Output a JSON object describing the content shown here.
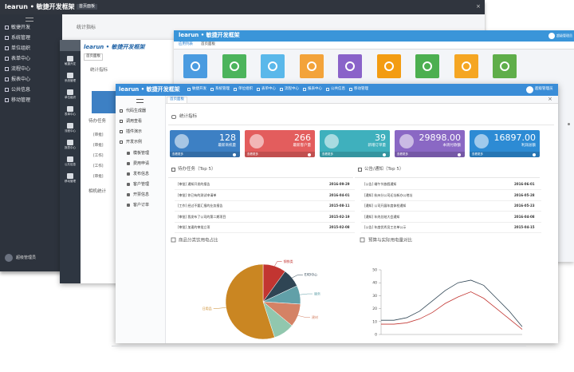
{
  "back_window": {
    "brand": "learun • 敏捷开发框架",
    "tab": "首页面板",
    "menu": [
      "敏捷开发",
      "系统管理",
      "单位组织",
      "表单中心",
      "流程中心",
      "报表中心",
      "公共信息",
      "移动管理"
    ],
    "section": "统计指标",
    "user": "超级管理员"
  },
  "mid_window": {
    "brand": "learun • 敏捷开发框架",
    "tab": "首页面板",
    "menu": [
      "敏捷开发",
      "系统管理",
      "单位组织",
      "表单中心",
      "流程中心",
      "报表中心",
      "公共信息",
      "移动管理"
    ],
    "section": "统计指标",
    "tasks_title": "待办任务",
    "tasks": [
      "[审批]",
      "[审批]",
      "[工作]",
      "[工作]",
      "[审批]"
    ],
    "section3": "相机统计"
  },
  "blue_window": {
    "brand": "learun • 敏捷开发框架",
    "tabs": [
      "应用列表",
      "首页面板"
    ],
    "user": "超级管理员",
    "tile_colors": [
      "#4a9be0",
      "#4cb45c",
      "#5ab8ea",
      "#f3a33a",
      "#8a63c9",
      "#f39c12",
      "#4caf50",
      "#f5a623",
      "#5fae4a"
    ]
  },
  "front_window": {
    "brand": "learun • 敏捷开发框架",
    "menu": [
      "敏捷开发",
      "系统管理",
      "单位组织",
      "表单中心",
      "流程中心",
      "报表中心",
      "公共信息",
      "移动管理"
    ],
    "user": "超级管理员",
    "tab": "首页面板",
    "side": [
      "代码生成器",
      "调用查看",
      "插件演示",
      "开发示例"
    ],
    "sub": [
      "模板管理",
      "费用申请",
      "发布信息",
      "客户管理",
      "开票信息",
      "客户订单"
    ],
    "section": "统计指标",
    "cards": [
      {
        "value": "128",
        "label": "最新商机量",
        "more": "查看更多",
        "color": "#3d80c4"
      },
      {
        "value": "266",
        "label": "最新客户量",
        "more": "查看更多",
        "color": "#e35d5d"
      },
      {
        "value": "39",
        "label": "新增订单量",
        "more": "查看更多",
        "color": "#3fb0bd"
      },
      {
        "value": "29898.00",
        "label": "本周付款额",
        "more": "查看更多",
        "color": "#8a68c4"
      },
      {
        "value": "16897.00",
        "label": "利润总额",
        "more": "查看更多",
        "color": "#2d8bd4"
      }
    ],
    "tasks": {
      "title": "待办任务（Top 5）",
      "rows": [
        {
          "text": "[审批] 通知开发的报告",
          "date": "2016-09-29"
        },
        {
          "text": "[审批] 你已有的测试申请单",
          "date": "2016-04-01"
        },
        {
          "text": "[工作] 经过不要汇报的业务报告",
          "date": "2015-08-11"
        },
        {
          "text": "[审批] 我发布了公司的第二期项目",
          "date": "2015-02-19"
        },
        {
          "text": "[审批] 加速的审批立项",
          "date": "2015-02-08"
        }
      ]
    },
    "notices": {
      "title": "公告/通知（Top 5）",
      "rows": [
        {
          "text": "[公告] 端午节放假通知",
          "date": "2016-06-01"
        },
        {
          "text": "[通知] 杭州分公司迁址新办公地址",
          "date": "2016-05-28"
        },
        {
          "text": "[通知] 公司开展年度体检通知",
          "date": "2016-05-23"
        },
        {
          "text": "[通知] 年终总结大会通知",
          "date": "2016-04-08"
        },
        {
          "text": "[公告] 年度优秀员工名单公示",
          "date": "2015-04-15"
        }
      ]
    }
  },
  "chart_data": [
    {
      "type": "pie",
      "title": "商品分类饮用电占比",
      "categories": [
        "钢铁类",
        "EXO中心",
        "服务",
        "建材",
        null,
        "日用品"
      ],
      "values": [
        10,
        8,
        8,
        10,
        9,
        55
      ],
      "colors": [
        "#c23531",
        "#2f4554",
        "#61a0a8",
        "#d48265",
        "#91c7ae",
        "#ca8622"
      ]
    },
    {
      "type": "line",
      "title": "预算与实际用电量对比",
      "categories": [
        null,
        null,
        null,
        null,
        null,
        null,
        null,
        null,
        null,
        null,
        null,
        null
      ],
      "ylim": [
        0,
        50
      ],
      "yticks": [
        0,
        10,
        20,
        30,
        40,
        50
      ],
      "grid": false,
      "series": [
        {
          "color": "#2f4554",
          "values": [
            11,
            11,
            13,
            18,
            26,
            34,
            40,
            42,
            38,
            28,
            18,
            6
          ]
        },
        {
          "color": "#c23531",
          "values": [
            8,
            8,
            9,
            12,
            17,
            24,
            29,
            33,
            28,
            20,
            12,
            4
          ]
        }
      ]
    }
  ]
}
